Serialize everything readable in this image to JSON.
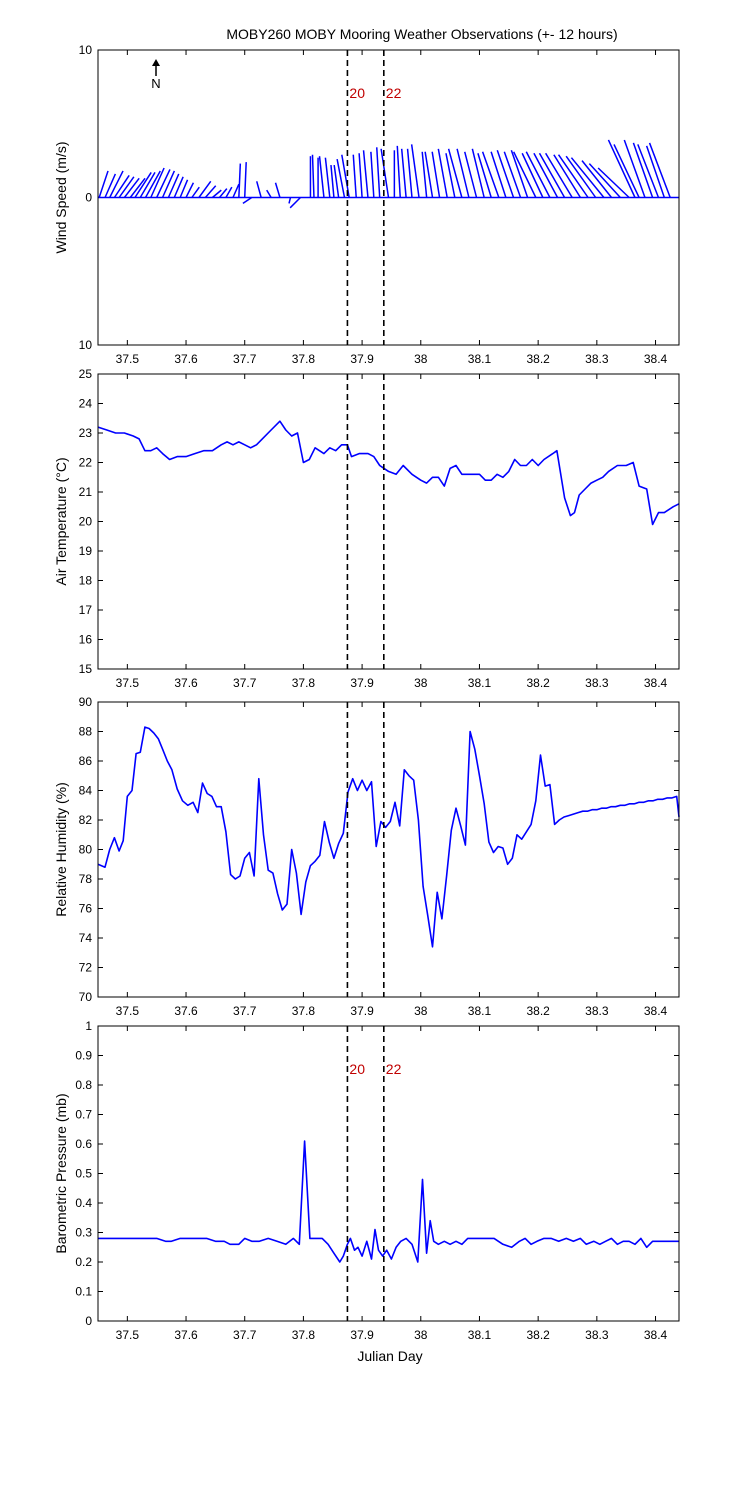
{
  "figure_title": "MOBY260 MOBY Mooring Weather Observations (+- 12 hours)",
  "xlabel": "Julian Day",
  "colors": {
    "data": "#0000ff",
    "marker": "#000000",
    "marker_label": "#c00000",
    "axes": "#000000"
  },
  "north_label": "N",
  "x_ticks": [
    "37.5",
    "37.6",
    "37.7",
    "37.8",
    "37.9",
    "38",
    "38.1",
    "38.2",
    "38.3",
    "38.4"
  ],
  "chart_data": [
    {
      "type": "line",
      "subtype": "wind_stick",
      "ylabel": "Wind Speed (m/s)",
      "xlim": [
        37.45,
        38.44
      ],
      "ylim": [
        -10,
        10
      ],
      "y_ticks": [
        "10",
        "0",
        "10"
      ],
      "markers": [
        {
          "x": 37.875,
          "label": "20"
        },
        {
          "x": 37.937,
          "label": "22"
        }
      ],
      "series": [
        {
          "x": [
            37.452,
            37.462,
            37.47,
            37.478,
            37.486,
            37.495,
            37.505,
            37.513,
            37.522,
            37.531,
            37.54,
            37.55,
            37.56,
            37.57,
            37.58,
            37.59,
            37.6,
            37.61,
            37.622,
            37.633,
            37.645,
            37.657,
            37.668,
            37.68,
            37.69,
            37.7,
            37.712,
            37.728,
            37.745,
            37.76,
            37.778,
            37.795,
            37.812,
            37.818,
            37.825,
            37.835,
            37.845,
            37.852,
            37.86,
            37.87,
            37.878,
            37.89,
            37.9,
            37.91,
            37.92,
            37.93,
            37.945,
            37.955,
            37.965,
            37.975,
            37.985,
            37.997,
            38.01,
            38.02,
            38.032,
            38.045,
            38.058,
            38.07,
            38.082,
            38.095,
            38.108,
            38.12,
            38.133,
            38.145,
            38.158,
            38.17,
            38.182,
            38.196,
            38.208,
            38.22,
            38.233,
            38.245,
            38.258,
            38.272,
            38.285,
            38.298,
            38.312,
            38.325,
            38.34,
            38.355,
            38.365,
            38.372,
            38.382,
            38.395,
            38.405,
            38.415,
            38.425
          ],
          "u": [
            0.6,
            0.7,
            0.9,
            1.0,
            1.0,
            1.0,
            1.0,
            1.1,
            1.0,
            1.0,
            0.9,
            0.9,
            0.8,
            0.7,
            0.6,
            0.5,
            0.5,
            0.5,
            0.8,
            0.7,
            0.6,
            0.5,
            0.4,
            0.4,
            0.1,
            0.1,
            -0.6,
            -0.3,
            -0.3,
            -0.3,
            -0.1,
            -0.7,
            0.0,
            -0.1,
            0.0,
            -0.3,
            -0.3,
            -0.2,
            -0.3,
            -0.5,
            -0.5,
            -0.2,
            -0.2,
            -0.3,
            -0.2,
            -0.2,
            -0.5,
            0.0,
            -0.2,
            -0.3,
            -0.3,
            -0.5,
            -0.3,
            -0.5,
            -0.5,
            -0.6,
            -0.6,
            -0.9,
            -0.8,
            -0.8,
            -0.8,
            -0.9,
            -1.1,
            -1.0,
            -1.1,
            -1.1,
            -1.1,
            -1.5,
            -1.4,
            -1.6,
            -1.6,
            -1.7,
            -1.8,
            -1.8,
            -2.0,
            -2.0,
            -2.2,
            -2.0,
            -2.1,
            -2.1,
            -1.8,
            -1.7,
            -1.4,
            -1.3,
            -1.4,
            -1.2,
            -1.4
          ],
          "v": [
            1.8,
            1.6,
            1.8,
            1.5,
            1.4,
            1.3,
            1.3,
            1.7,
            1.7,
            1.8,
            2.0,
            1.9,
            1.8,
            1.6,
            1.4,
            1.2,
            1.0,
            0.7,
            1.1,
            0.8,
            0.5,
            0.6,
            0.7,
            0.9,
            2.3,
            2.4,
            -0.4,
            1.1,
            0.5,
            1.0,
            -0.4,
            -0.7,
            2.8,
            2.9,
            2.7,
            2.8,
            2.7,
            2.2,
            2.2,
            2.6,
            2.9,
            2.9,
            3.0,
            3.2,
            3.1,
            3.4,
            3.3,
            3.2,
            3.5,
            3.3,
            3.3,
            3.6,
            3.1,
            3.1,
            3.1,
            3.3,
            3.0,
            3.3,
            3.3,
            3.1,
            3.3,
            3.0,
            3.1,
            3.1,
            3.2,
            3.1,
            3.2,
            3.1,
            3.0,
            3.1,
            3.0,
            3.0,
            3.0,
            2.9,
            2.9,
            2.8,
            2.7,
            2.5,
            2.3,
            2.0,
            3.9,
            3.6,
            3.9,
            3.7,
            3.6,
            3.5,
            3.7
          ]
        }
      ]
    },
    {
      "type": "line",
      "ylabel": "Air Temperature (°C)",
      "xlim": [
        37.45,
        38.44
      ],
      "ylim": [
        15,
        25
      ],
      "y_ticks": [
        "15",
        "16",
        "17",
        "18",
        "19",
        "20",
        "21",
        "22",
        "23",
        "24",
        "25"
      ],
      "markers": [
        {
          "x": 37.875,
          "label": ""
        },
        {
          "x": 37.937,
          "label": ""
        }
      ],
      "series": [
        {
          "x": [
            37.45,
            37.465,
            37.48,
            37.495,
            37.51,
            37.52,
            37.53,
            37.54,
            37.55,
            37.56,
            37.572,
            37.585,
            37.6,
            37.615,
            37.63,
            37.645,
            37.66,
            37.67,
            37.68,
            37.69,
            37.7,
            37.71,
            37.72,
            37.73,
            37.745,
            37.76,
            37.77,
            37.78,
            37.79,
            37.8,
            37.81,
            37.82,
            37.835,
            37.845,
            37.855,
            37.865,
            37.875,
            37.882,
            37.895,
            37.91,
            37.92,
            37.93,
            37.945,
            37.958,
            37.97,
            37.985,
            38.0,
            38.01,
            38.02,
            38.03,
            38.04,
            38.05,
            38.06,
            38.07,
            38.08,
            38.09,
            38.1,
            38.11,
            38.12,
            38.13,
            38.14,
            38.15,
            38.16,
            38.17,
            38.18,
            38.19,
            38.2,
            38.21,
            38.225,
            38.232,
            38.245,
            38.255,
            38.262,
            38.27,
            38.28,
            38.29,
            38.3,
            38.31,
            38.32,
            38.335,
            38.35,
            38.362,
            38.372,
            38.385,
            38.395,
            38.405,
            38.415,
            38.43,
            38.44
          ],
          "y": [
            23.2,
            23.1,
            23.0,
            23.0,
            22.9,
            22.8,
            22.4,
            22.4,
            22.5,
            22.3,
            22.1,
            22.2,
            22.2,
            22.3,
            22.4,
            22.4,
            22.6,
            22.7,
            22.6,
            22.7,
            22.6,
            22.5,
            22.6,
            22.8,
            23.1,
            23.4,
            23.1,
            22.9,
            23.0,
            22.0,
            22.1,
            22.5,
            22.3,
            22.5,
            22.4,
            22.6,
            22.6,
            22.2,
            22.3,
            22.3,
            22.2,
            21.9,
            21.7,
            21.6,
            21.9,
            21.6,
            21.4,
            21.3,
            21.5,
            21.5,
            21.2,
            21.8,
            21.9,
            21.6,
            21.6,
            21.6,
            21.6,
            21.4,
            21.4,
            21.6,
            21.5,
            21.7,
            22.1,
            21.9,
            21.9,
            22.1,
            21.9,
            22.1,
            22.3,
            22.4,
            20.8,
            20.2,
            20.3,
            20.9,
            21.1,
            21.3,
            21.4,
            21.5,
            21.7,
            21.9,
            21.9,
            22.0,
            21.2,
            21.1,
            19.9,
            20.3,
            20.3,
            20.5,
            20.6
          ]
        }
      ]
    },
    {
      "type": "line",
      "ylabel": "Relative Humidity (%)",
      "xlim": [
        37.45,
        38.44
      ],
      "ylim": [
        70,
        90
      ],
      "y_ticks": [
        "70",
        "72",
        "74",
        "76",
        "78",
        "80",
        "82",
        "84",
        "86",
        "88",
        "90"
      ],
      "markers": [
        {
          "x": 37.875,
          "label": ""
        },
        {
          "x": 37.937,
          "label": ""
        }
      ],
      "series": [
        {
          "x": [
            37.45,
            37.462,
            37.47,
            37.478,
            37.486,
            37.493,
            37.5,
            37.508,
            37.515,
            37.522,
            37.53,
            37.537,
            37.545,
            37.553,
            37.56,
            37.568,
            37.576,
            37.585,
            37.594,
            37.603,
            37.612,
            37.62,
            37.628,
            37.636,
            37.644,
            37.652,
            37.66,
            37.668,
            37.676,
            37.684,
            37.692,
            37.7,
            37.708,
            37.716,
            37.724,
            37.732,
            37.74,
            37.748,
            37.756,
            37.764,
            37.772,
            37.78,
            37.788,
            37.796,
            37.804,
            37.812,
            37.82,
            37.828,
            37.836,
            37.844,
            37.852,
            37.86,
            37.868,
            37.876,
            37.884,
            37.892,
            37.9,
            37.908,
            37.916,
            37.924,
            37.932,
            37.94,
            37.948,
            37.956,
            37.964,
            37.972,
            37.98,
            37.988,
            37.996,
            38.004,
            38.012,
            38.02,
            38.028,
            38.036,
            38.044,
            38.052,
            38.06,
            38.068,
            38.076,
            38.084,
            38.092,
            38.1,
            38.108,
            38.116,
            38.124,
            38.132,
            38.14,
            38.148,
            38.156,
            38.164,
            38.172,
            38.18,
            38.188,
            38.196,
            38.204,
            38.212,
            38.22,
            38.228,
            38.236,
            38.244,
            38.252,
            38.26,
            38.268,
            38.276,
            38.284,
            38.292,
            38.3,
            38.308,
            38.316,
            38.324,
            38.332,
            38.34,
            38.348,
            38.356,
            38.364,
            38.372,
            38.38,
            38.388,
            38.396,
            38.404,
            38.412,
            38.42,
            38.428,
            38.436,
            38.44
          ],
          "y": [
            79.0,
            78.8,
            80.0,
            80.8,
            79.9,
            80.6,
            83.6,
            84.0,
            86.5,
            86.6,
            88.3,
            88.2,
            87.9,
            87.5,
            86.8,
            86.0,
            85.4,
            84.1,
            83.3,
            83.0,
            83.2,
            82.5,
            84.5,
            83.8,
            83.6,
            82.9,
            82.9,
            81.2,
            78.3,
            78.0,
            78.2,
            79.4,
            79.8,
            78.2,
            84.8,
            81.0,
            78.6,
            78.4,
            77.0,
            75.9,
            76.3,
            80.0,
            78.4,
            75.6,
            77.8,
            78.9,
            79.2,
            79.6,
            81.9,
            80.5,
            79.4,
            80.4,
            81.1,
            83.9,
            84.8,
            84.0,
            84.7,
            84.0,
            84.6,
            80.2,
            81.9,
            81.5,
            81.9,
            83.2,
            81.6,
            85.4,
            85.0,
            84.7,
            82.0,
            77.5,
            75.5,
            73.4,
            77.1,
            75.3,
            78.2,
            81.3,
            82.8,
            81.6,
            80.3,
            88.0,
            86.8,
            85.0,
            83.1,
            80.5,
            79.8,
            80.2,
            80.1,
            79.0,
            79.4,
            81.0,
            80.7,
            81.2,
            81.7,
            83.3,
            86.4,
            84.3,
            84.4,
            81.7,
            82.0,
            82.2,
            82.3,
            82.4,
            82.5,
            82.6,
            82.6,
            82.7,
            82.7,
            82.8,
            82.8,
            82.9,
            82.9,
            83.0,
            83.0,
            83.1,
            83.1,
            83.2,
            83.2,
            83.3,
            83.3,
            83.4,
            83.4,
            83.5,
            83.5,
            83.6,
            82.2
          ]
        }
      ]
    },
    {
      "type": "line",
      "ylabel": "Barometric Pressure (mb)",
      "xlim": [
        37.45,
        38.44
      ],
      "ylim": [
        0,
        1
      ],
      "y_ticks": [
        "0",
        "0.1",
        "0.2",
        "0.3",
        "0.4",
        "0.5",
        "0.6",
        "0.7",
        "0.8",
        "0.9",
        "1"
      ],
      "markers": [
        {
          "x": 37.875,
          "label": "20"
        },
        {
          "x": 37.937,
          "label": "22"
        }
      ],
      "series": [
        {
          "x": [
            37.45,
            37.47,
            37.49,
            37.51,
            37.53,
            37.55,
            37.565,
            37.575,
            37.59,
            37.605,
            37.62,
            37.635,
            37.65,
            37.665,
            37.675,
            37.69,
            37.7,
            37.712,
            37.725,
            37.74,
            37.755,
            37.77,
            37.783,
            37.793,
            37.802,
            37.811,
            37.82,
            37.832,
            37.842,
            37.852,
            37.862,
            37.868,
            37.875,
            37.88,
            37.887,
            37.893,
            37.9,
            37.908,
            37.916,
            37.922,
            37.928,
            37.935,
            37.942,
            37.95,
            37.958,
            37.966,
            37.975,
            37.985,
            37.995,
            38.003,
            38.01,
            38.016,
            38.022,
            38.03,
            38.04,
            38.05,
            38.06,
            38.07,
            38.08,
            38.095,
            38.11,
            38.125,
            38.14,
            38.155,
            38.168,
            38.178,
            38.188,
            38.198,
            38.21,
            38.222,
            38.235,
            38.248,
            38.26,
            38.272,
            38.282,
            38.295,
            38.305,
            38.315,
            38.325,
            38.335,
            38.345,
            38.355,
            38.365,
            38.375,
            38.385,
            38.395,
            38.405,
            38.415,
            38.425,
            38.44
          ],
          "y": [
            0.28,
            0.28,
            0.28,
            0.28,
            0.28,
            0.28,
            0.27,
            0.27,
            0.28,
            0.28,
            0.28,
            0.28,
            0.27,
            0.27,
            0.26,
            0.26,
            0.28,
            0.27,
            0.27,
            0.28,
            0.27,
            0.26,
            0.28,
            0.26,
            0.61,
            0.28,
            0.28,
            0.28,
            0.26,
            0.23,
            0.2,
            0.22,
            0.26,
            0.28,
            0.24,
            0.25,
            0.22,
            0.27,
            0.21,
            0.31,
            0.24,
            0.22,
            0.24,
            0.21,
            0.25,
            0.27,
            0.28,
            0.26,
            0.2,
            0.48,
            0.23,
            0.34,
            0.27,
            0.26,
            0.27,
            0.26,
            0.27,
            0.26,
            0.28,
            0.28,
            0.28,
            0.28,
            0.26,
            0.25,
            0.27,
            0.28,
            0.26,
            0.27,
            0.28,
            0.28,
            0.27,
            0.28,
            0.27,
            0.28,
            0.26,
            0.27,
            0.26,
            0.27,
            0.28,
            0.26,
            0.27,
            0.27,
            0.26,
            0.28,
            0.25,
            0.27,
            0.27,
            0.27,
            0.27,
            0.27
          ]
        }
      ]
    }
  ]
}
